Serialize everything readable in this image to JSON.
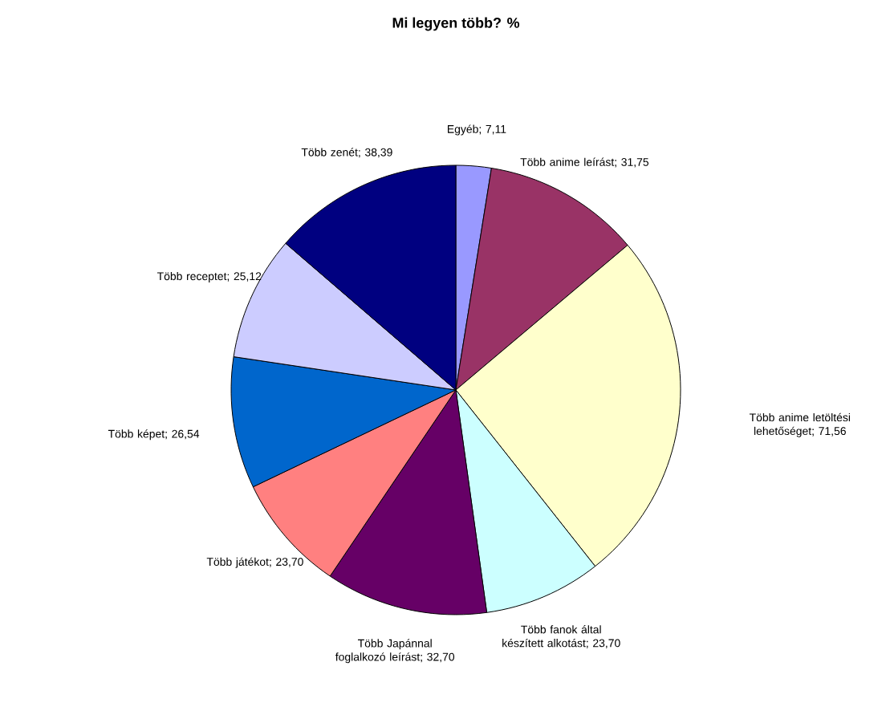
{
  "chart_data": {
    "type": "pie",
    "title": "Mi legyen több? %",
    "categories": [
      "Egyéb; 7,11",
      "Több anime leírást; 31,75",
      "Több anime letöltési lehetőséget; 71,56",
      "Több fanok által készített alkotást; 23,70",
      "Több Japánnal foglalkozó leírást; 32,70",
      "Több játékot; 23,70",
      "Több képet; 26,54",
      "Több receptet; 25,12",
      "Több zenét; 38,39"
    ],
    "values": [
      7.11,
      31.75,
      71.56,
      23.7,
      32.7,
      23.7,
      26.54,
      25.12,
      38.39
    ],
    "colors": [
      "#9999ff",
      "#993366",
      "#ffffcc",
      "#ccffff",
      "#660066",
      "#ff8080",
      "#0066cc",
      "#ccccff",
      "#000080"
    ]
  }
}
